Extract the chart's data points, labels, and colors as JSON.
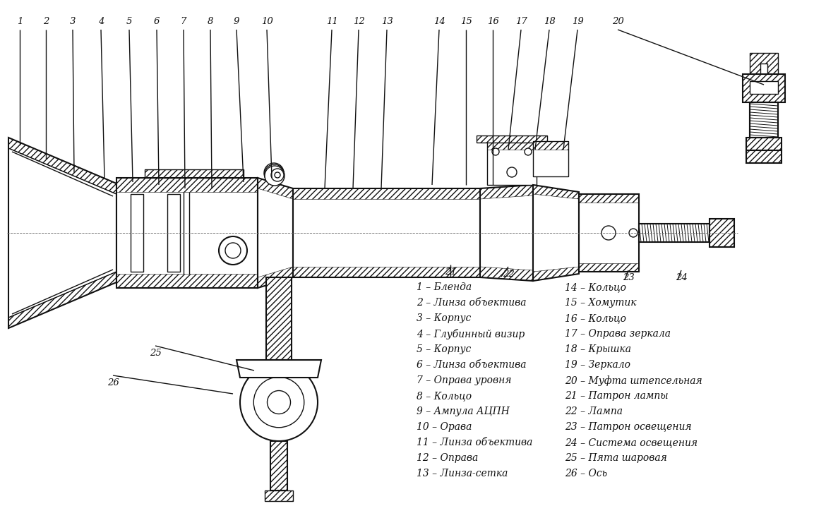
{
  "bg_color": "#ffffff",
  "lc": "#111111",
  "legend_left": [
    "1 – Бленда",
    "2 – Линза объектива",
    "3 – Корпус",
    "4 – Глубинный визир",
    "5 – Корпус",
    "6 – Линза объектива",
    "7 – Оправа уровня",
    "8 – Кольцо",
    "9 – Ампула АЦПН",
    "10 – Орава",
    "11 – Линза объектива",
    "12 – Оправа",
    "13 – Линза-сетка"
  ],
  "legend_right": [
    "14 – Кольцо",
    "15 – Хомутик",
    "16 – Кольцо",
    "17 – Оправа зеркала",
    "18 – Крышка",
    "19 – Зеркало",
    "20 – Муфта штепсельная",
    "21 – Патрон лампы",
    "22 – Лампа",
    "23 – Патрон освещения",
    "24 – Система освещения",
    "25 – Пята шаровая",
    "26 – Ось"
  ],
  "figsize": [
    11.87,
    7.51
  ],
  "dpi": 100
}
